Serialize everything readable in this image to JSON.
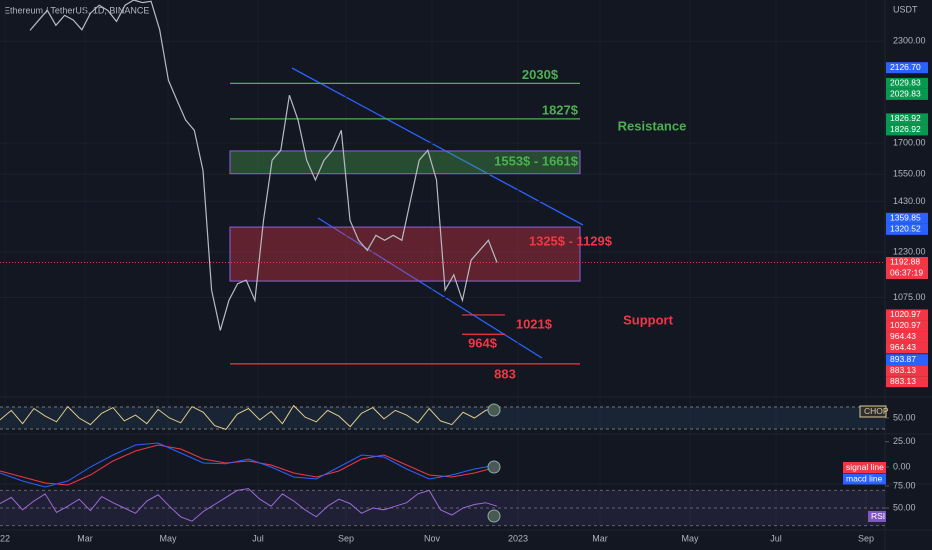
{
  "header": {
    "symbol": "Ethereum / TetherUS, 1D, BINANCE",
    "currency": "USDT"
  },
  "chart_data": {
    "type": "line",
    "log_scale": true,
    "ylim": [
      805,
      2600
    ],
    "yticks": [
      {
        "value": 2300,
        "label": "2300.00"
      },
      {
        "value": 1700,
        "label": "1700.00"
      },
      {
        "value": 1550,
        "label": "1550.00"
      },
      {
        "value": 1430,
        "label": "1430.00"
      },
      {
        "value": 1230,
        "label": "1230.00"
      },
      {
        "value": 1075,
        "label": "1075.00"
      }
    ],
    "xticks": [
      "22",
      "Mar",
      "May",
      "Jul",
      "Sep",
      "Nov",
      "2023",
      "Mar",
      "May",
      "Jul",
      "Sep"
    ],
    "series": [
      {
        "color": "#b7bac1",
        "values": [
          2376,
          2448,
          2522,
          2412,
          2484,
          2450,
          2380,
          2500,
          2560,
          2520,
          2440,
          2560,
          2600,
          2580,
          2590,
          2380,
          2049,
          1930,
          1820,
          1766,
          1568,
          1099,
          975,
          1066,
          1120,
          1132,
          1066,
          1352,
          1616,
          1665,
          1960,
          1820,
          1616,
          1524,
          1616,
          1665,
          1766,
          1352,
          1274,
          1237,
          1293,
          1274,
          1293,
          1274,
          1435,
          1616,
          1665,
          1524,
          1099,
          1150,
          1066,
          1201,
          1237,
          1274,
          1193
        ]
      }
    ],
    "levels": [
      {
        "value": 2030,
        "label": "2030$",
        "color": "#4caf50"
      },
      {
        "value": 1827,
        "label": "1827$",
        "color": "#4caf50"
      },
      {
        "value": 1021,
        "label": "1021$",
        "color": "#f23645"
      },
      {
        "value": 964,
        "label": "964$",
        "color": "#f23645"
      },
      {
        "value": 883,
        "label": "883",
        "color": "#f23645"
      }
    ],
    "zones": [
      {
        "low": 1553,
        "high": 1661,
        "label": "1553$ - 1661$",
        "color": "#4caf50"
      },
      {
        "low": 1129,
        "high": 1325,
        "label": "1325$ - 1129$",
        "color": "#f23645"
      }
    ],
    "annotations": [
      {
        "text": "Resistance",
        "color": "#4caf50"
      },
      {
        "text": "Support",
        "color": "#f23645"
      }
    ],
    "price_labels": [
      {
        "value": 2126.7,
        "label": "2126.70",
        "color": "#2962ff"
      },
      {
        "value": 2029.83,
        "label": "2029.83",
        "color": "#089950"
      },
      {
        "value": 2029.83,
        "label": "2029.83",
        "color": "#089950"
      },
      {
        "value": 1826.92,
        "label": "1826.92",
        "color": "#089950"
      },
      {
        "value": 1826.92,
        "label": "1826.92",
        "color": "#089950"
      },
      {
        "value": 1359.85,
        "label": "1359.85",
        "color": "#2962ff"
      },
      {
        "value": 1320.52,
        "label": "1320.52",
        "color": "#2962ff"
      },
      {
        "value": 1192.88,
        "label": "1192.88",
        "color": "#f23645"
      },
      {
        "value": 1020.97,
        "label": "1020.97",
        "color": "#f23645"
      },
      {
        "value": 1020.97,
        "label": "1020.97",
        "color": "#f23645"
      },
      {
        "value": 964.43,
        "label": "964.43",
        "color": "#f23645"
      },
      {
        "value": 964.43,
        "label": "964.43",
        "color": "#f23645"
      },
      {
        "value": 893.87,
        "label": "893.87",
        "color": "#2962ff"
      },
      {
        "value": 883.13,
        "label": "883.13",
        "color": "#f23645"
      },
      {
        "value": 883.13,
        "label": "883.13",
        "color": "#f23645"
      }
    ],
    "countdown": "06:37:19"
  },
  "indicators": {
    "chop": {
      "name": "CHOP",
      "color": "#e0c98a",
      "yticks": [
        {
          "value": 50,
          "label": "50.00"
        },
        {
          "value": 25,
          "label": "25.00"
        }
      ],
      "values": [
        48,
        58,
        44,
        60,
        52,
        46,
        62,
        50,
        43,
        55,
        61,
        47,
        53,
        44,
        59,
        50,
        45,
        62,
        56,
        42,
        38,
        54,
        60,
        48,
        57,
        44,
        63,
        51,
        46,
        58,
        52,
        41,
        55,
        61,
        49,
        58,
        53,
        45,
        60,
        47,
        43,
        56,
        50,
        58,
        61
      ]
    },
    "macd": {
      "yticks": [
        {
          "value": 0,
          "label": "0.00"
        }
      ],
      "series": [
        {
          "name": "signal line",
          "color": "#f23645",
          "values": [
            -10,
            -25,
            -40,
            -45,
            -20,
            15,
            40,
            55,
            45,
            20,
            10,
            15,
            5,
            -15,
            -25,
            -10,
            20,
            30,
            5,
            -20,
            -25,
            -15,
            0
          ]
        },
        {
          "name": "macd line",
          "color": "#2962ff",
          "values": [
            -15,
            -35,
            -50,
            -35,
            0,
            30,
            55,
            60,
            35,
            10,
            8,
            20,
            0,
            -25,
            -30,
            0,
            30,
            25,
            -5,
            -30,
            -20,
            -5,
            5
          ]
        }
      ]
    },
    "rsi": {
      "name": "RSI",
      "color": "#9c6bd6",
      "yticks": [
        {
          "value": 75,
          "label": "75.00"
        },
        {
          "value": 50,
          "label": "50.00"
        }
      ],
      "values": [
        55,
        62,
        48,
        58,
        66,
        45,
        52,
        60,
        47,
        63,
        56,
        50,
        44,
        58,
        65,
        52,
        40,
        35,
        46,
        54,
        62,
        70,
        72,
        60,
        52,
        66,
        58,
        48,
        40,
        52,
        60,
        55,
        44,
        50,
        48,
        52,
        56,
        66,
        70,
        48,
        42,
        50,
        54,
        56,
        52
      ]
    }
  }
}
